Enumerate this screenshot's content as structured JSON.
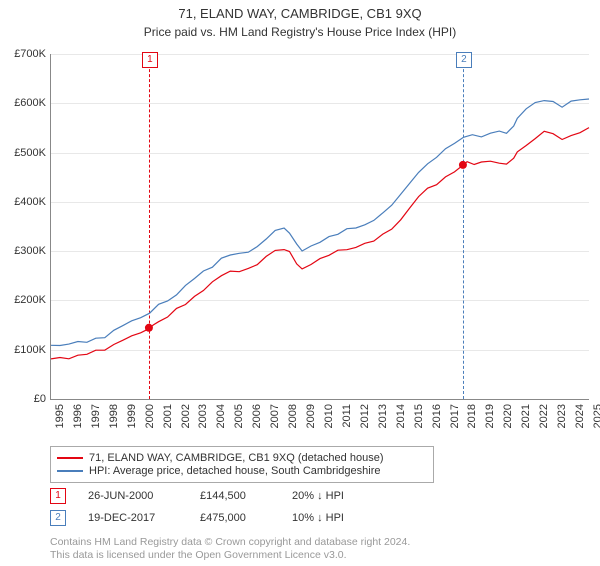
{
  "title": "71, ELAND WAY, CAMBRIDGE, CB1 9XQ",
  "subtitle": "Price paid vs. HM Land Registry's House Price Index (HPI)",
  "chart": {
    "type": "line",
    "background_color": "#ffffff",
    "grid_color": "#e8e8e8",
    "axis_color": "#888888",
    "label_color": "#333333",
    "label_fontsize": 11,
    "y_axis": {
      "min": 0,
      "max": 700000,
      "tick_step": 100000,
      "ticks": [
        "£0",
        "£100K",
        "£200K",
        "£300K",
        "£400K",
        "£500K",
        "£600K",
        "£700K"
      ]
    },
    "x_axis": {
      "years": [
        1995,
        1996,
        1997,
        1998,
        1999,
        2000,
        2001,
        2002,
        2003,
        2004,
        2005,
        2006,
        2007,
        2008,
        2009,
        2010,
        2011,
        2012,
        2013,
        2014,
        2015,
        2016,
        2017,
        2018,
        2019,
        2020,
        2021,
        2022,
        2023,
        2024,
        2025
      ]
    },
    "series": [
      {
        "name": "price_paid",
        "label": "71, ELAND WAY, CAMBRIDGE, CB1 9XQ (detached house)",
        "color": "#e30613",
        "line_width": 1.2,
        "data": [
          [
            1995,
            80000
          ],
          [
            1995.5,
            82000
          ],
          [
            1996,
            85000
          ],
          [
            1996.5,
            88000
          ],
          [
            1997,
            92000
          ],
          [
            1997.5,
            97000
          ],
          [
            1998,
            103000
          ],
          [
            1998.5,
            110000
          ],
          [
            1999,
            118000
          ],
          [
            1999.5,
            128000
          ],
          [
            2000,
            138000
          ],
          [
            2000.46,
            144500
          ],
          [
            2000.7,
            149000
          ],
          [
            2001,
            158000
          ],
          [
            2001.5,
            168000
          ],
          [
            2002,
            180000
          ],
          [
            2002.5,
            195000
          ],
          [
            2003,
            210000
          ],
          [
            2003.5,
            223000
          ],
          [
            2004,
            235000
          ],
          [
            2004.5,
            248000
          ],
          [
            2005,
            258000
          ],
          [
            2005.5,
            261000
          ],
          [
            2006,
            266000
          ],
          [
            2006.5,
            275000
          ],
          [
            2007,
            288000
          ],
          [
            2007.5,
            300000
          ],
          [
            2008,
            305000
          ],
          [
            2008.3,
            296000
          ],
          [
            2008.7,
            276000
          ],
          [
            2009,
            264000
          ],
          [
            2009.5,
            273000
          ],
          [
            2010,
            283000
          ],
          [
            2010.5,
            292000
          ],
          [
            2011,
            298000
          ],
          [
            2011.5,
            302000
          ],
          [
            2012,
            306000
          ],
          [
            2012.5,
            312000
          ],
          [
            2013,
            320000
          ],
          [
            2013.5,
            332000
          ],
          [
            2014,
            348000
          ],
          [
            2014.5,
            367000
          ],
          [
            2015,
            388000
          ],
          [
            2015.5,
            408000
          ],
          [
            2016,
            425000
          ],
          [
            2016.5,
            438000
          ],
          [
            2017,
            448000
          ],
          [
            2017.5,
            462000
          ],
          [
            2017.97,
            475000
          ],
          [
            2018.2,
            480000
          ],
          [
            2018.6,
            478000
          ],
          [
            2019,
            477000
          ],
          [
            2019.5,
            479000
          ],
          [
            2020,
            482000
          ],
          [
            2020.4,
            478000
          ],
          [
            2020.8,
            491000
          ],
          [
            2021,
            502000
          ],
          [
            2021.5,
            518000
          ],
          [
            2022,
            532000
          ],
          [
            2022.5,
            540000
          ],
          [
            2023,
            536000
          ],
          [
            2023.5,
            530000
          ],
          [
            2024,
            538000
          ],
          [
            2024.5,
            544000
          ],
          [
            2025,
            548000
          ]
        ],
        "markers": [
          {
            "x": 2000.46,
            "y": 144500
          },
          {
            "x": 2017.97,
            "y": 475000
          }
        ],
        "marker_color": "#e30613",
        "marker_radius": 4
      },
      {
        "name": "hpi",
        "label": "HPI: Average price, detached house, South Cambridgeshire",
        "color": "#4a7ebb",
        "line_width": 1.2,
        "data": [
          [
            1995,
            105000
          ],
          [
            1995.5,
            108000
          ],
          [
            1996,
            111000
          ],
          [
            1996.5,
            113000
          ],
          [
            1997,
            117000
          ],
          [
            1997.5,
            122000
          ],
          [
            1998,
            128000
          ],
          [
            1998.5,
            136000
          ],
          [
            1999,
            145000
          ],
          [
            1999.5,
            156000
          ],
          [
            2000,
            168000
          ],
          [
            2000.5,
            178000
          ],
          [
            2001,
            189000
          ],
          [
            2001.5,
            199000
          ],
          [
            2002,
            212000
          ],
          [
            2002.5,
            228000
          ],
          [
            2003,
            244000
          ],
          [
            2003.5,
            258000
          ],
          [
            2004,
            270000
          ],
          [
            2004.5,
            282000
          ],
          [
            2005,
            292000
          ],
          [
            2005.5,
            295000
          ],
          [
            2006,
            300000
          ],
          [
            2006.5,
            310000
          ],
          [
            2007,
            324000
          ],
          [
            2007.5,
            338000
          ],
          [
            2008,
            343000
          ],
          [
            2008.3,
            334000
          ],
          [
            2008.7,
            312000
          ],
          [
            2009,
            298000
          ],
          [
            2009.5,
            308000
          ],
          [
            2010,
            320000
          ],
          [
            2010.5,
            330000
          ],
          [
            2011,
            337000
          ],
          [
            2011.5,
            342000
          ],
          [
            2012,
            347000
          ],
          [
            2012.5,
            354000
          ],
          [
            2013,
            363000
          ],
          [
            2013.5,
            377000
          ],
          [
            2014,
            395000
          ],
          [
            2014.5,
            417000
          ],
          [
            2015,
            440000
          ],
          [
            2015.5,
            462000
          ],
          [
            2016,
            480000
          ],
          [
            2016.5,
            494000
          ],
          [
            2017,
            505000
          ],
          [
            2017.5,
            518000
          ],
          [
            2018,
            530000
          ],
          [
            2018.5,
            534000
          ],
          [
            2019,
            535000
          ],
          [
            2019.5,
            539000
          ],
          [
            2020,
            543000
          ],
          [
            2020.4,
            540000
          ],
          [
            2020.8,
            555000
          ],
          [
            2021,
            567000
          ],
          [
            2021.5,
            585000
          ],
          [
            2022,
            600000
          ],
          [
            2022.5,
            609000
          ],
          [
            2023,
            604000
          ],
          [
            2023.5,
            595000
          ],
          [
            2024,
            601000
          ],
          [
            2024.5,
            608000
          ],
          [
            2025,
            611000
          ]
        ]
      }
    ],
    "vertical_markers": [
      {
        "n": "1",
        "x": 2000.46,
        "color": "#e30613"
      },
      {
        "n": "2",
        "x": 2017.97,
        "color": "#4a7ebb"
      }
    ]
  },
  "legend": {
    "items": [
      {
        "color": "#e30613",
        "label": "71, ELAND WAY, CAMBRIDGE, CB1 9XQ (detached house)"
      },
      {
        "color": "#4a7ebb",
        "label": "HPI: Average price, detached house, South Cambridgeshire"
      }
    ]
  },
  "events": [
    {
      "n": "1",
      "color": "#e30613",
      "date": "26-JUN-2000",
      "price": "£144,500",
      "vs": "20% ↓ HPI"
    },
    {
      "n": "2",
      "color": "#4a7ebb",
      "date": "19-DEC-2017",
      "price": "£475,000",
      "vs": "10% ↓ HPI"
    }
  ],
  "footnote": {
    "line1": "Contains HM Land Registry data © Crown copyright and database right 2024.",
    "line2": "This data is licensed under the Open Government Licence v3.0."
  }
}
